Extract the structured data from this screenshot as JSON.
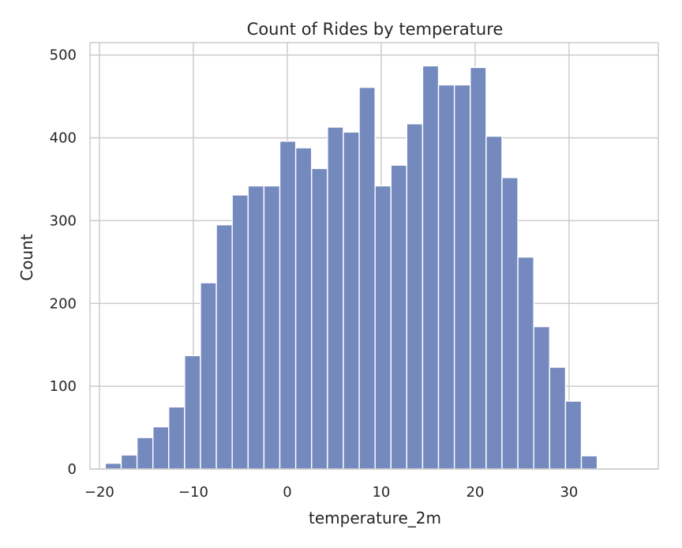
{
  "chart_data": {
    "type": "bar",
    "title": "Count of Rides by temperature",
    "xlabel": "temperature_2m",
    "ylabel": "Count",
    "xlim": [
      -21.0,
      39.5
    ],
    "ylim": [
      0,
      515
    ],
    "xticks": [
      -20,
      -10,
      0,
      10,
      20,
      30
    ],
    "xtick_labels": [
      "−20",
      "−10",
      "0",
      "10",
      "20",
      "30"
    ],
    "yticks": [
      0,
      100,
      200,
      300,
      400,
      500
    ],
    "ytick_labels": [
      "0",
      "100",
      "200",
      "300",
      "400",
      "500"
    ],
    "grid": true,
    "bar_color": "#7489be",
    "bins": [
      {
        "x0": -19.37,
        "x1": -17.68,
        "count": 7
      },
      {
        "x0": -17.68,
        "x1": -15.99,
        "count": 17
      },
      {
        "x0": -15.99,
        "x1": -14.3,
        "count": 38
      },
      {
        "x0": -14.3,
        "x1": -12.62,
        "count": 51
      },
      {
        "x0": -12.62,
        "x1": -10.93,
        "count": 75
      },
      {
        "x0": -10.93,
        "x1": -9.24,
        "count": 137
      },
      {
        "x0": -9.24,
        "x1": -7.55,
        "count": 225
      },
      {
        "x0": -7.55,
        "x1": -5.86,
        "count": 295
      },
      {
        "x0": -5.86,
        "x1": -4.17,
        "count": 331
      },
      {
        "x0": -4.17,
        "x1": -2.48,
        "count": 342
      },
      {
        "x0": -2.48,
        "x1": -0.79,
        "count": 342
      },
      {
        "x0": -0.79,
        "x1": 0.9,
        "count": 396
      },
      {
        "x0": 0.9,
        "x1": 2.59,
        "count": 388
      },
      {
        "x0": 2.59,
        "x1": 4.28,
        "count": 363
      },
      {
        "x0": 4.28,
        "x1": 5.97,
        "count": 413
      },
      {
        "x0": 5.97,
        "x1": 7.66,
        "count": 407
      },
      {
        "x0": 7.66,
        "x1": 9.35,
        "count": 461
      },
      {
        "x0": 9.35,
        "x1": 11.04,
        "count": 342
      },
      {
        "x0": 11.04,
        "x1": 12.72,
        "count": 367
      },
      {
        "x0": 12.72,
        "x1": 14.41,
        "count": 417
      },
      {
        "x0": 14.41,
        "x1": 16.1,
        "count": 487
      },
      {
        "x0": 16.1,
        "x1": 17.79,
        "count": 464
      },
      {
        "x0": 17.79,
        "x1": 19.48,
        "count": 464
      },
      {
        "x0": 19.48,
        "x1": 21.17,
        "count": 485
      },
      {
        "x0": 21.17,
        "x1": 22.86,
        "count": 402
      },
      {
        "x0": 22.86,
        "x1": 24.55,
        "count": 352
      },
      {
        "x0": 24.55,
        "x1": 26.24,
        "count": 256
      },
      {
        "x0": 26.24,
        "x1": 27.93,
        "count": 172
      },
      {
        "x0": 27.93,
        "x1": 29.62,
        "count": 123
      },
      {
        "x0": 29.62,
        "x1": 31.31,
        "count": 82
      },
      {
        "x0": 31.31,
        "x1": 33.0,
        "count": 16
      }
    ]
  }
}
